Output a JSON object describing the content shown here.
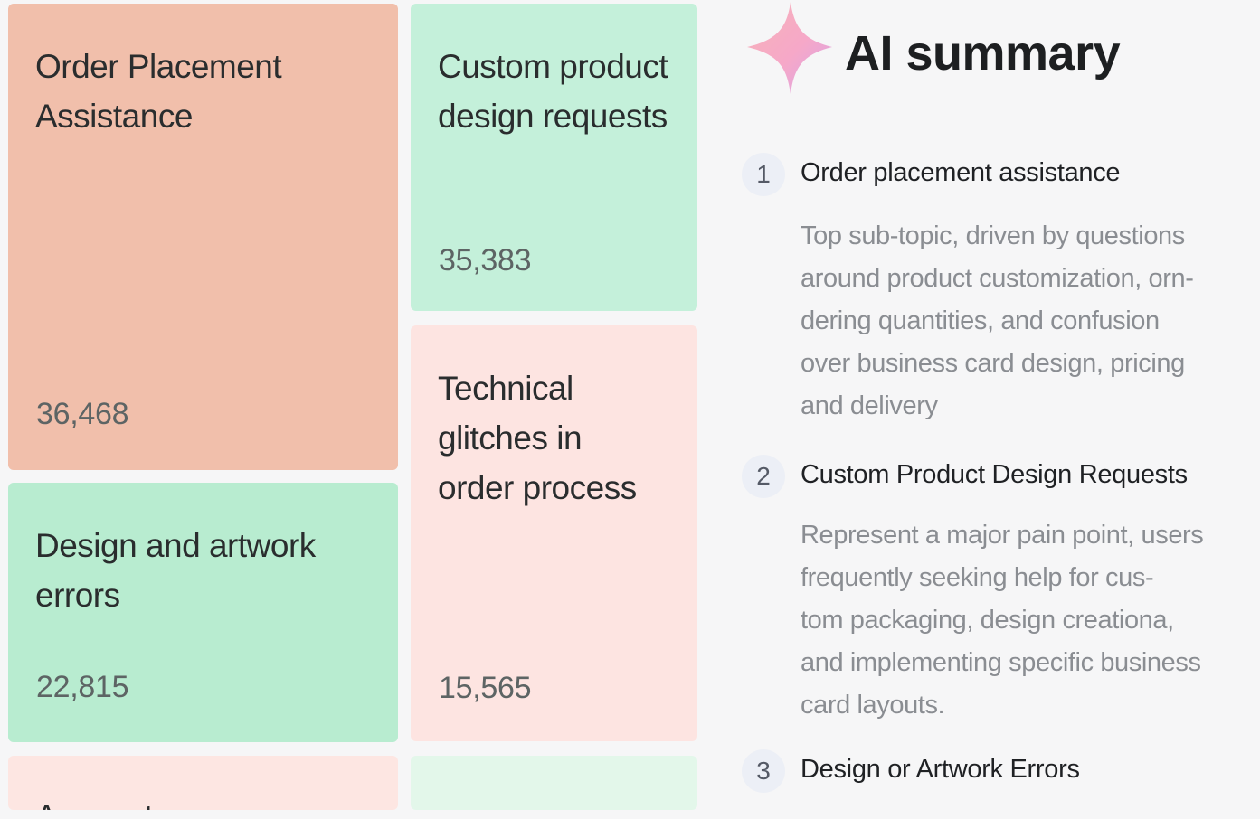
{
  "treemap": {
    "tiles": [
      {
        "label": "Order Placement\nAssistance",
        "value": "36,468",
        "color": "#f1bfab"
      },
      {
        "label": "Custom product\ndesign requests",
        "value": "35,383",
        "color": "#c4f0da"
      },
      {
        "label": "Technical\nglitches in\norder process",
        "value": "15,565",
        "color": "#fde4e1"
      },
      {
        "label": "Design and artwork\nerrors",
        "value": "22,815",
        "color": "#b8ecd0"
      },
      {
        "label": "Account access",
        "color": "#fde6e2"
      },
      {
        "label": "",
        "color": "#e3f7ea"
      }
    ]
  },
  "summary": {
    "title": "AI summary",
    "sparkle_icon": "sparkle-icon",
    "items": [
      {
        "number": "1",
        "title": "Order placement assistance",
        "body": "Top sub-topic, driven by questions\naround product customization, orn-\ndering quantities, and confusion\nover business card design, pricing\nand delivery"
      },
      {
        "number": "2",
        "title": "Custom Product Design Requests",
        "body": "Represent a major pain point, users\nfrequently seeking help for cus-\ntom packaging, design creationa,\nand implementing specific business\ncard layouts."
      },
      {
        "number": "3",
        "title": "Design or Artwork Errors",
        "body": ""
      }
    ]
  }
}
